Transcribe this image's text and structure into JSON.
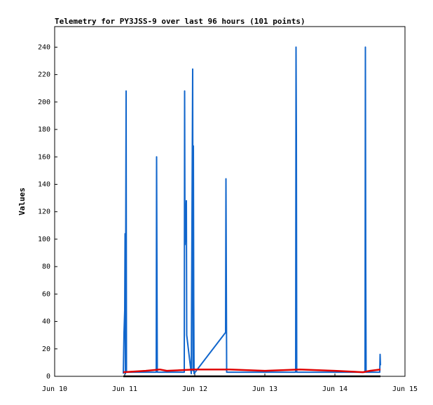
{
  "chart_data": {
    "type": "line",
    "title": "Telemetry for PY3JSS-9 over last 96 hours (101 points)",
    "y_label": "Values",
    "xlim": [
      10,
      15
    ],
    "xticks": [
      {
        "value": 10,
        "label": "Jun 10"
      },
      {
        "value": 11,
        "label": "Jun 11"
      },
      {
        "value": 12,
        "label": "Jun 12"
      },
      {
        "value": 13,
        "label": "Jun 13"
      },
      {
        "value": 14,
        "label": "Jun 14"
      },
      {
        "value": 15,
        "label": "Jun 15"
      }
    ],
    "ylim": [
      0,
      255
    ],
    "yticks": [
      0,
      20,
      40,
      60,
      80,
      100,
      120,
      140,
      160,
      180,
      200,
      220,
      240
    ],
    "grid": false,
    "series": [
      {
        "color": "#1166cc",
        "x": [
          10.98,
          10.99,
          11.0,
          11.005,
          11.01,
          11.02,
          11.025,
          11.45,
          11.455,
          11.46,
          11.465,
          11.85,
          11.855,
          11.86,
          11.88,
          11.885,
          11.95,
          11.97,
          11.975,
          11.98,
          11.985,
          11.99,
          12.44,
          12.445,
          12.45,
          12.455,
          13.44,
          13.445,
          13.45,
          13.455,
          14.43,
          14.435,
          14.44,
          14.445,
          14.64,
          14.645,
          14.65
        ],
        "values": [
          2,
          32,
          48,
          104,
          2,
          208,
          3,
          3,
          160,
          80,
          3,
          3,
          208,
          96,
          128,
          30,
          2,
          224,
          4,
          168,
          56,
          2,
          32,
          144,
          72,
          3,
          3,
          240,
          176,
          3,
          3,
          240,
          80,
          3,
          3,
          16,
          8
        ]
      },
      {
        "color": "#e00000",
        "x": [
          10.98,
          11.3,
          11.5,
          11.6,
          12.0,
          12.5,
          13.0,
          13.5,
          14.0,
          14.4,
          14.5,
          14.65
        ],
        "values": [
          3,
          4,
          5,
          4,
          5,
          5,
          4,
          5,
          4,
          3,
          4,
          5
        ]
      },
      {
        "color": "#000000",
        "x": [
          10.98,
          14.65
        ],
        "values": [
          0,
          0
        ]
      }
    ]
  }
}
